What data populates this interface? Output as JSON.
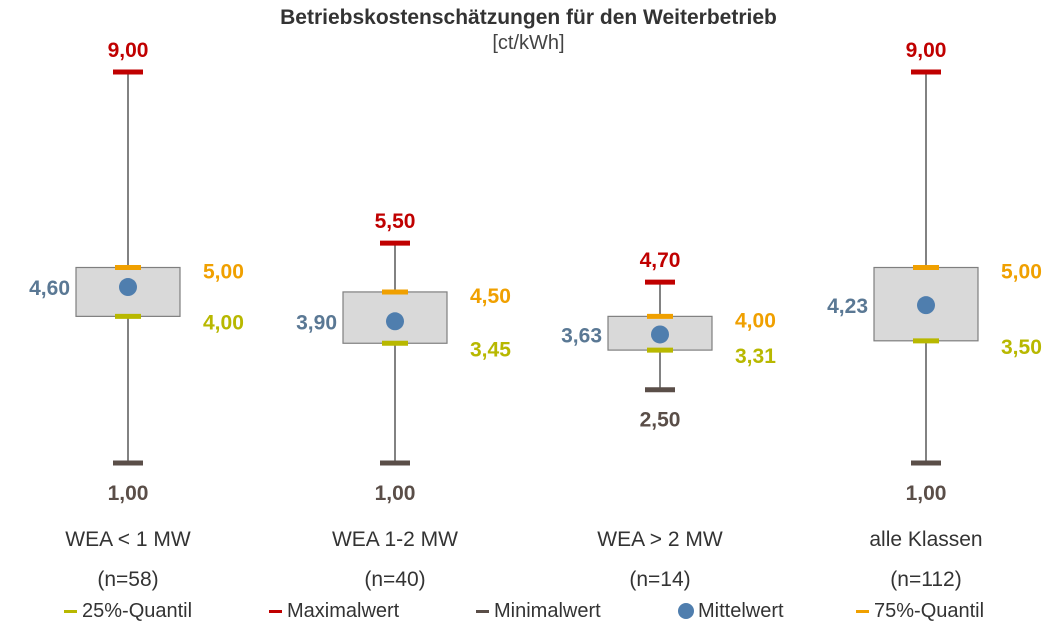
{
  "title": "Betriebskostenschätzungen für den Weiterbetrieb",
  "subtitle": "[ct/kWh]",
  "colors": {
    "max": "#c00000",
    "min": "#5a4e48",
    "q25": "#b8b800",
    "q75": "#f0a000",
    "mean": "#4f7eae",
    "mean_label": "#5a7894",
    "box_fill": "#d9d9d9",
    "box_stroke": "#7f7f7f",
    "whisker": "#595959"
  },
  "chart_data": {
    "type": "box",
    "unit": "ct/kWh",
    "groups": [
      {
        "name": "WEA < 1 MW",
        "n": "(n=58)",
        "min": 1.0,
        "q25": 4.0,
        "mean": 4.6,
        "q75": 5.0,
        "max": 9.0,
        "labels": {
          "min": "1,00",
          "q25": "4,00",
          "mean": "4,60",
          "q75": "5,00",
          "max": "9,00"
        }
      },
      {
        "name": "WEA 1-2 MW",
        "n": "(n=40)",
        "min": 1.0,
        "q25": 3.45,
        "mean": 3.9,
        "q75": 4.5,
        "max": 5.5,
        "labels": {
          "min": "1,00",
          "q25": "3,45",
          "mean": "3,90",
          "q75": "4,50",
          "max": "5,50"
        }
      },
      {
        "name": "WEA > 2 MW",
        "n": "(n=14)",
        "min": 2.5,
        "q25": 3.31,
        "mean": 3.63,
        "q75": 4.0,
        "max": 4.7,
        "labels": {
          "min": "2,50",
          "q25": "3,31",
          "mean": "3,63",
          "q75": "4,00",
          "max": "4,70"
        }
      },
      {
        "name": "alle Klassen",
        "n": "(n=112)",
        "min": 1.0,
        "q25": 3.5,
        "mean": 4.23,
        "q75": 5.0,
        "max": 9.0,
        "labels": {
          "min": "1,00",
          "q25": "3,50",
          "mean": "4,23",
          "q75": "5,00",
          "max": "9,00"
        }
      }
    ],
    "legend": [
      {
        "label": "25%-Quantil",
        "key": "q25",
        "shape": "dash"
      },
      {
        "label": "Maximalwert",
        "key": "max",
        "shape": "dash"
      },
      {
        "label": "Minimalwert",
        "key": "min",
        "shape": "dash"
      },
      {
        "label": "Mittelwert",
        "key": "mean",
        "shape": "dot"
      },
      {
        "label": "75%-Quantil",
        "key": "q75",
        "shape": "dash"
      }
    ],
    "legend_position": "bottom"
  }
}
